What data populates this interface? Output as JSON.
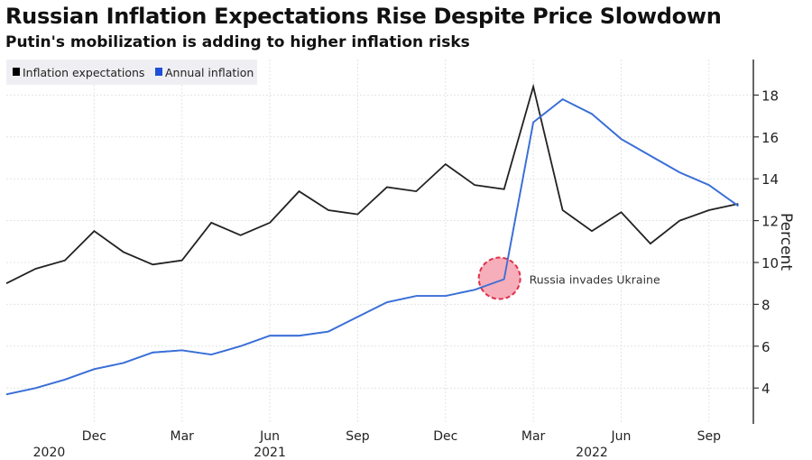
{
  "chart_data": {
    "type": "line",
    "title": "Russian Inflation Expectations Rise Despite Price Slowdown",
    "subtitle": "Putin's mobilization is adding to higher inflation risks",
    "ylabel": "Percent",
    "ylim": [
      2.5,
      19.5
    ],
    "yticks": [
      4,
      6,
      8,
      10,
      12,
      14,
      16,
      18
    ],
    "y_axis_side": "right",
    "grid": true,
    "legend_position": "top-left",
    "x": [
      "2020-09",
      "2020-10",
      "2020-11",
      "2020-12",
      "2021-01",
      "2021-02",
      "2021-03",
      "2021-04",
      "2021-05",
      "2021-06",
      "2021-07",
      "2021-08",
      "2021-09",
      "2021-10",
      "2021-11",
      "2021-12",
      "2022-01",
      "2022-02",
      "2022-03",
      "2022-04",
      "2022-05",
      "2022-06",
      "2022-07",
      "2022-08",
      "2022-09",
      "2022-10"
    ],
    "xtick_labels": [
      {
        "month": "2020-12",
        "label": "Dec"
      },
      {
        "month": "2021-03",
        "label": "Mar"
      },
      {
        "month": "2021-06",
        "label": "Jun"
      },
      {
        "month": "2021-09",
        "label": "Sep"
      },
      {
        "month": "2021-12",
        "label": "Dec"
      },
      {
        "month": "2022-03",
        "label": "Mar"
      },
      {
        "month": "2022-06",
        "label": "Jun"
      },
      {
        "month": "2022-09",
        "label": "Sep"
      }
    ],
    "year_labels": [
      {
        "month": "2020-10",
        "label": "2020"
      },
      {
        "month": "2021-06",
        "label": "2021"
      },
      {
        "month": "2022-05",
        "label": "2022"
      }
    ],
    "series": [
      {
        "name": "Inflation expectations",
        "color": "#222222",
        "values": [
          9.0,
          9.7,
          10.1,
          11.5,
          10.5,
          9.9,
          10.1,
          11.9,
          11.3,
          11.9,
          13.4,
          12.5,
          12.3,
          13.6,
          13.4,
          14.7,
          13.7,
          13.5,
          18.4,
          12.5,
          11.5,
          12.4,
          10.9,
          12.0,
          12.5,
          12.8
        ]
      },
      {
        "name": "Annual inflation",
        "color": "#3a6fd8",
        "values": [
          3.7,
          4.0,
          4.4,
          4.9,
          5.2,
          5.7,
          5.8,
          5.6,
          6.0,
          6.5,
          6.5,
          6.7,
          7.4,
          8.1,
          8.4,
          8.4,
          8.7,
          9.2,
          16.7,
          17.8,
          17.1,
          15.9,
          15.1,
          14.3,
          13.7,
          12.7
        ]
      }
    ],
    "annotations": [
      {
        "text": "Russia invades Ukraine",
        "month": "2022-02",
        "value": 9.2,
        "marker_color": "#f4a0ae",
        "marker_border": "#e0304a"
      }
    ]
  }
}
